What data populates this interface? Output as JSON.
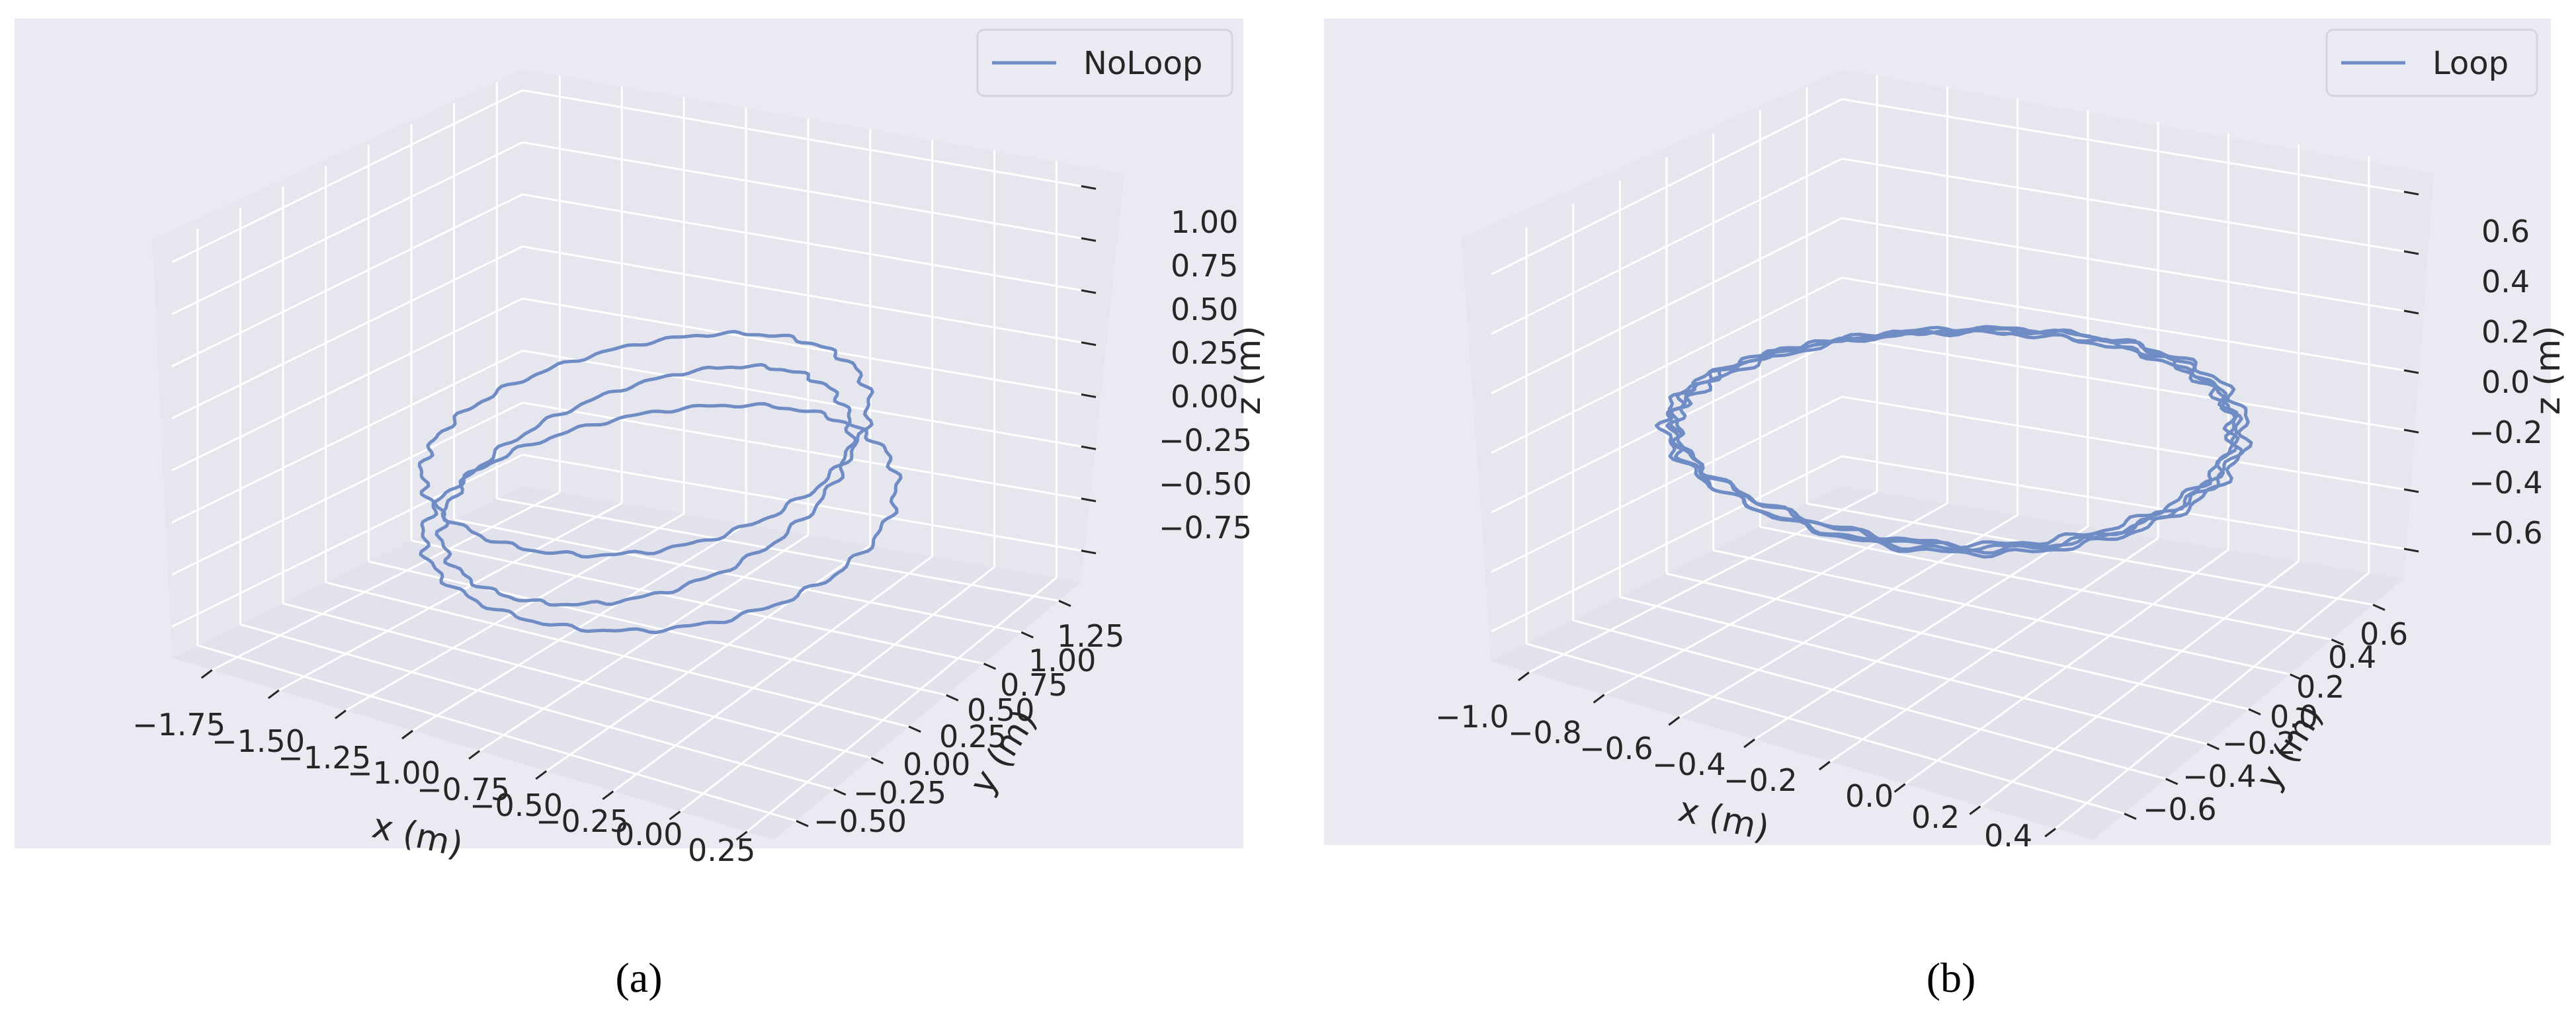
{
  "colors": {
    "panel_bg": "#eaeaf2",
    "pane_wall": "#e6e6ef",
    "pane_floor": "#e2e2ec",
    "grid": "#ffffff",
    "line": "#6f8cc4",
    "text": "#262626"
  },
  "chart_data": [
    {
      "type": "line",
      "projection": "3d",
      "caption": "(a)",
      "legend": {
        "position": "top-right",
        "entries": [
          "NoLoop"
        ]
      },
      "xlabel": "x (m)",
      "ylabel": "y (m)",
      "zlabel": "z (m)",
      "xlim": [
        -1.9,
        0.35
      ],
      "ylim": [
        -0.65,
        1.4
      ],
      "zlim": [
        -0.9,
        1.1
      ],
      "xticks": [
        -1.75,
        -1.5,
        -1.25,
        -1.0,
        -0.75,
        -0.5,
        -0.25,
        0.0,
        0.25
      ],
      "xticklabels": [
        "−1.75",
        "−1.50",
        "−1.25",
        "−1.00",
        "−0.75",
        "−0.50",
        "−0.25",
        "0.00",
        "0.25"
      ],
      "yticks": [
        -0.5,
        -0.25,
        0.0,
        0.25,
        0.5,
        0.75,
        1.0,
        1.25
      ],
      "yticklabels": [
        "−0.50",
        "−0.25",
        "0.00",
        "0.25",
        "0.50",
        "0.75",
        "1.00",
        "1.25"
      ],
      "zticks": [
        -0.75,
        -0.5,
        -0.25,
        0.0,
        0.25,
        0.5,
        0.75,
        1.0
      ],
      "zticklabels": [
        "−0.75",
        "−0.50",
        "−0.25",
        "0.00",
        "0.25",
        "0.50",
        "0.75",
        "1.00"
      ],
      "grid": true,
      "series": [
        {
          "name": "NoLoop",
          "loops": [
            {
              "cx": -0.75,
              "cy": 0.4,
              "z0": 0.05,
              "rx": 0.75,
              "ry": 0.7,
              "tilt": 0.2,
              "phase": 0.0
            },
            {
              "cx": -0.72,
              "cy": 0.35,
              "z0": -0.12,
              "rx": 0.7,
              "ry": 0.6,
              "tilt": 0.32,
              "phase": 0.4
            },
            {
              "cx": -0.62,
              "cy": 0.28,
              "z0": -0.2,
              "rx": 0.8,
              "ry": 0.72,
              "tilt": 0.18,
              "phase": 0.9
            }
          ]
        }
      ]
    },
    {
      "type": "line",
      "projection": "3d",
      "caption": "(b)",
      "legend": {
        "position": "top-right",
        "entries": [
          "Loop"
        ]
      },
      "xlabel": "x (m)",
      "ylabel": "y (m)",
      "zlabel": "z (m)",
      "xlim": [
        -1.1,
        0.5
      ],
      "ylim": [
        -0.75,
        0.75
      ],
      "zlim": [
        -0.7,
        0.7
      ],
      "xticks": [
        -1.0,
        -0.8,
        -0.6,
        -0.4,
        -0.2,
        0.0,
        0.2,
        0.4
      ],
      "xticklabels": [
        "−1.0",
        "−0.8",
        "−0.6",
        "−0.4",
        "−0.2",
        "0.0",
        "0.2",
        "0.4"
      ],
      "yticks": [
        -0.6,
        -0.4,
        -0.2,
        0.0,
        0.2,
        0.4,
        0.6
      ],
      "yticklabels": [
        "−0.6",
        "−0.4",
        "−0.2",
        "0.0",
        "0.2",
        "0.4",
        "0.6"
      ],
      "zticks": [
        -0.6,
        -0.4,
        -0.2,
        0.0,
        0.2,
        0.4,
        0.6
      ],
      "zticklabels": [
        "−0.6",
        "−0.4",
        "−0.2",
        "0.0",
        "0.2",
        "0.4",
        "0.6"
      ],
      "grid": true,
      "series": [
        {
          "name": "Loop",
          "loops": [
            {
              "cx": -0.3,
              "cy": 0.0,
              "z0": 0.0,
              "rx": 0.68,
              "ry": 0.62,
              "tilt": 0.0,
              "phase": 0.0
            },
            {
              "cx": -0.3,
              "cy": 0.0,
              "z0": 0.01,
              "rx": 0.67,
              "ry": 0.61,
              "tilt": 0.02,
              "phase": 0.3
            },
            {
              "cx": -0.29,
              "cy": 0.01,
              "z0": -0.01,
              "rx": 0.69,
              "ry": 0.62,
              "tilt": 0.03,
              "phase": 0.7
            },
            {
              "cx": -0.31,
              "cy": -0.01,
              "z0": 0.0,
              "rx": 0.68,
              "ry": 0.63,
              "tilt": 0.01,
              "phase": 1.1
            }
          ]
        }
      ]
    }
  ]
}
